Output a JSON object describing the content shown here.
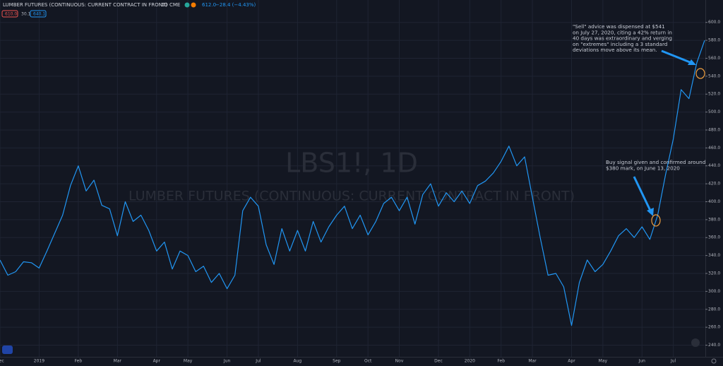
{
  "chart_data": {
    "type": "line",
    "title": "LUMBER FUTURES (CONTINUOUS: CURRENT CONTRACT IN FRONT)",
    "interval": "1D",
    "exchange": "CME",
    "last_price": "612.0",
    "change": "−28.4 (−4.43%)",
    "bid": "610.0",
    "spread": "30.1",
    "ask": "640.1",
    "watermark_symbol": "LBS1!, 1D",
    "watermark_name": "LUMBER FUTURES (CONTINUOUS: CURRENT CONTRACT IN FRONT)",
    "color": "#2196f3",
    "grid": true,
    "categories": [
      "Dec",
      null,
      null,
      null,
      null,
      "2019",
      null,
      null,
      null,
      null,
      "Feb",
      null,
      null,
      null,
      null,
      "Mar",
      null,
      null,
      null,
      null,
      "Apr",
      null,
      null,
      null,
      "May",
      null,
      null,
      null,
      null,
      "Jun",
      null,
      null,
      null,
      "Jul",
      null,
      null,
      null,
      null,
      "Aug",
      null,
      null,
      null,
      null,
      "Sep",
      null,
      null,
      null,
      "Oct",
      null,
      null,
      null,
      "Nov",
      null,
      null,
      null,
      null,
      "Dec",
      null,
      null,
      null,
      "2020",
      null,
      null,
      null,
      "Feb",
      null,
      null,
      null,
      "Mar",
      null,
      null,
      null,
      null,
      "Apr",
      null,
      null,
      null,
      "May",
      null,
      null,
      null,
      null,
      "Jun",
      null,
      null,
      null,
      "Jul",
      null,
      null,
      null,
      null
    ],
    "values": [
      335,
      318,
      322,
      333,
      332,
      326,
      345,
      365,
      385,
      418,
      440,
      412,
      424,
      396,
      392,
      362,
      400,
      378,
      385,
      368,
      345,
      355,
      325,
      345,
      340,
      322,
      328,
      310,
      320,
      303,
      318,
      390,
      405,
      395,
      352,
      330,
      370,
      345,
      368,
      345,
      378,
      355,
      372,
      385,
      395,
      370,
      385,
      363,
      378,
      398,
      405,
      390,
      405,
      375,
      408,
      420,
      395,
      410,
      400,
      412,
      398,
      418,
      423,
      432,
      445,
      462,
      440,
      450,
      405,
      360,
      318,
      320,
      305,
      262,
      310,
      335,
      322,
      330,
      345,
      362,
      370,
      360,
      372,
      358,
      385,
      430,
      470,
      525,
      515,
      555,
      580
    ],
    "ylim": [
      227,
      625
    ],
    "yticks": [
      {
        "value": 240,
        "label": "240.0"
      },
      {
        "value": 260,
        "label": "260.0"
      },
      {
        "value": 280,
        "label": "280.0"
      },
      {
        "value": 300,
        "label": "300.0"
      },
      {
        "value": 320,
        "label": "320.0"
      },
      {
        "value": 340,
        "label": "340.0"
      },
      {
        "value": 360,
        "label": "360.0"
      },
      {
        "value": 380,
        "label": "380.0"
      },
      {
        "value": 400,
        "label": "400.0"
      },
      {
        "value": 420,
        "label": "420.0"
      },
      {
        "value": 440,
        "label": "440.0"
      },
      {
        "value": 460,
        "label": "460.0"
      },
      {
        "value": 480,
        "label": "480.0"
      },
      {
        "value": 500,
        "label": "500.0"
      },
      {
        "value": 520,
        "label": "520.0"
      },
      {
        "value": 540,
        "label": "540.0"
      },
      {
        "value": 560,
        "label": "560.0"
      },
      {
        "value": 580,
        "label": "580.0"
      },
      {
        "value": 600,
        "label": "600.0"
      }
    ],
    "annotations": [
      {
        "lines": [
          "\"Sell\" advice was dispensed at $541",
          "on July 27, 2020, citing a 42% return in",
          "40 days was extraordinary and verging",
          "on \"extremes\" including a 3 standard",
          "deviations move above its mean."
        ]
      },
      {
        "lines": [
          "Buy signal given and confirmed around",
          "$380 mark, on June 13, 2020"
        ]
      }
    ]
  }
}
